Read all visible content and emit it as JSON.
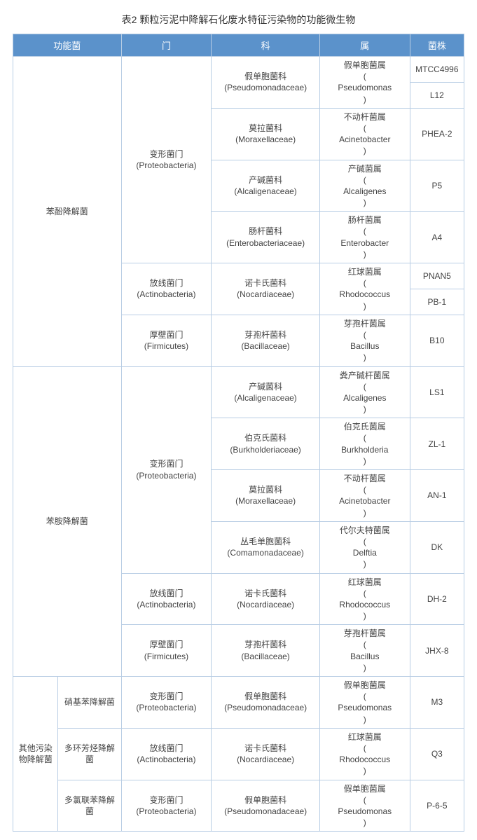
{
  "caption": "表2   颗粒污泥中降解石化废水特征污染物的功能微生物",
  "headers": {
    "func_group": "功能菌",
    "phylum": "门",
    "family": "科",
    "genus": "属",
    "strain": "菌株"
  },
  "colors": {
    "header_bg": "#5b92cb",
    "header_text": "#ffffff",
    "border": "#b8cde4",
    "body_text": "#444444",
    "background": "#ffffff"
  },
  "col_widths_pct": [
    10,
    14,
    20,
    24,
    20,
    12
  ],
  "groups": {
    "phenol": {
      "label": "苯酚降解菌"
    },
    "aniline": {
      "label": "苯胺降解菌"
    },
    "other": {
      "label": "其他污染物降解菌",
      "sub": {
        "nitrobenzene": "硝基苯降解菌",
        "pah": "多环芳烃降解菌",
        "pcb": "多氯联苯降解菌"
      }
    }
  },
  "phyla": {
    "proteo": {
      "cn": "变形菌门",
      "lat": "(Proteobacteria)"
    },
    "actino": {
      "cn": "放线菌门",
      "lat": "(Actinobacteria)"
    },
    "firmi": {
      "cn": "厚壁菌门",
      "lat": "(Firmicutes)"
    }
  },
  "families": {
    "pseudo": {
      "cn": "假单胞菌科",
      "lat": "(Pseudomonadaceae)"
    },
    "morax": {
      "cn": "莫拉菌科",
      "lat": "(Moraxellaceae)"
    },
    "alcali": {
      "cn": "产碱菌科",
      "lat": "(Alcaligenaceae)"
    },
    "entero": {
      "cn": "肠杆菌科",
      "lat": "(Enterobacteriaceae)"
    },
    "nocard": {
      "cn": "诺卡氏菌科",
      "lat": "(Nocardiaceae)"
    },
    "bacill": {
      "cn": "芽孢杆菌科",
      "lat": "(Bacillaceae)"
    },
    "burkho": {
      "cn": "伯克氏菌科",
      "lat": "(Burkholderiaceae)"
    },
    "comamo": {
      "cn": "丛毛单胞菌科",
      "lat": "(Comamonadaceae)"
    }
  },
  "genera": {
    "pseudomonas": {
      "cn": "假单胞菌属",
      "lat": "Pseudomonas"
    },
    "acinetobacter": {
      "cn": "不动杆菌属",
      "lat": "Acinetobacter"
    },
    "alcaligenes": {
      "cn": "产碱菌属",
      "lat": "Alcaligenes"
    },
    "enterobacter": {
      "cn": "肠杆菌属",
      "lat": "Enterobacter"
    },
    "rhodococcus": {
      "cn": "红球菌属",
      "lat": "Rhodococcus"
    },
    "bacillus": {
      "cn": "芽孢杆菌属",
      "lat": "Bacillus"
    },
    "alcaligenes2": {
      "cn": "粪产碱杆菌属",
      "lat": "Alcaligenes"
    },
    "burkholderia": {
      "cn": "伯克氏菌属",
      "lat": "Burkholderia"
    },
    "delftia": {
      "cn": "代尔夫特菌属",
      "lat": "Delftia"
    }
  },
  "strains": {
    "s1": "MTCC4996",
    "s2": "L12",
    "s3": "PHEA-2",
    "s4": "P5",
    "s5": "A4",
    "s6": "PNAN5",
    "s7": "PB-1",
    "s8": "B10",
    "s9": "LS1",
    "s10": "ZL-1",
    "s11": "AN-1",
    "s12": "DK",
    "s13": "DH-2",
    "s14": "JHX-8",
    "s15": "M3",
    "s16": "Q3",
    "s17": "P-6-5"
  }
}
